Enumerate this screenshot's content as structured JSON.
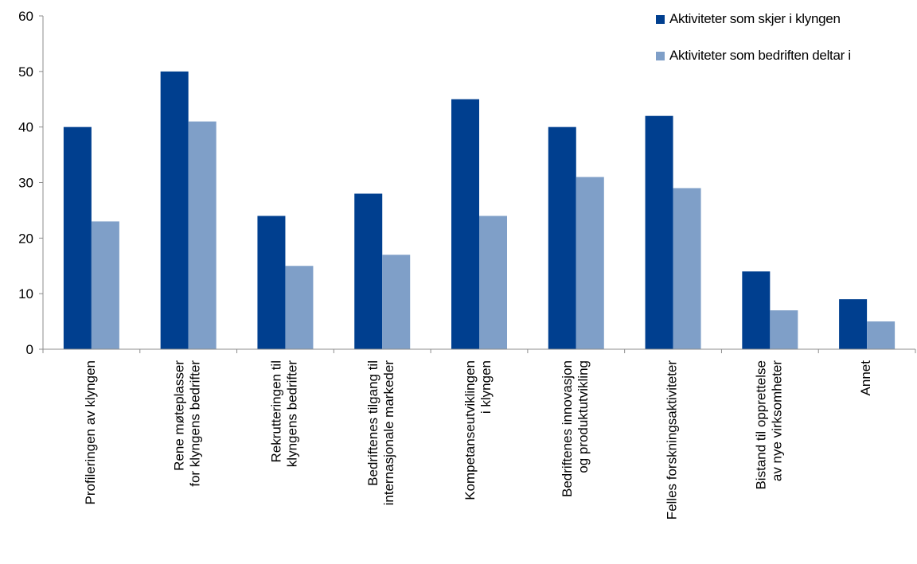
{
  "chart_data": {
    "type": "bar",
    "categories": [
      [
        "Profileringen av klyngen"
      ],
      [
        "Rene møteplasser",
        "for klyngens bedrifter"
      ],
      [
        "Rekrutteringen til",
        "klyngens bedrifter"
      ],
      [
        "Bedriftenes tilgang til",
        "internasjonale markeder"
      ],
      [
        "Kompetanseutviklingen",
        "i klyngen"
      ],
      [
        "Bedriftenes innovasjon",
        "og produktutvikling"
      ],
      [
        "Felles forskningsaktiviteter"
      ],
      [
        "Bistand til opprettelse",
        "av nye virksomheter"
      ],
      [
        "Annet"
      ]
    ],
    "series": [
      {
        "name": "Aktiviteter som skjer i klyngen",
        "color": "#003f8f",
        "values": [
          40,
          50,
          24,
          28,
          45,
          40,
          42,
          14,
          9
        ]
      },
      {
        "name": "Aktiviteter som bedriften deltar i",
        "color": "#7f9fc8",
        "values": [
          23,
          41,
          15,
          17,
          24,
          31,
          29,
          7,
          5
        ]
      }
    ],
    "yticks": [
      0,
      10,
      20,
      30,
      40,
      50,
      60
    ],
    "ylim": [
      0,
      60
    ],
    "title": "",
    "xlabel": "",
    "ylabel": "",
    "grid": false,
    "legend_position": "top-right"
  }
}
